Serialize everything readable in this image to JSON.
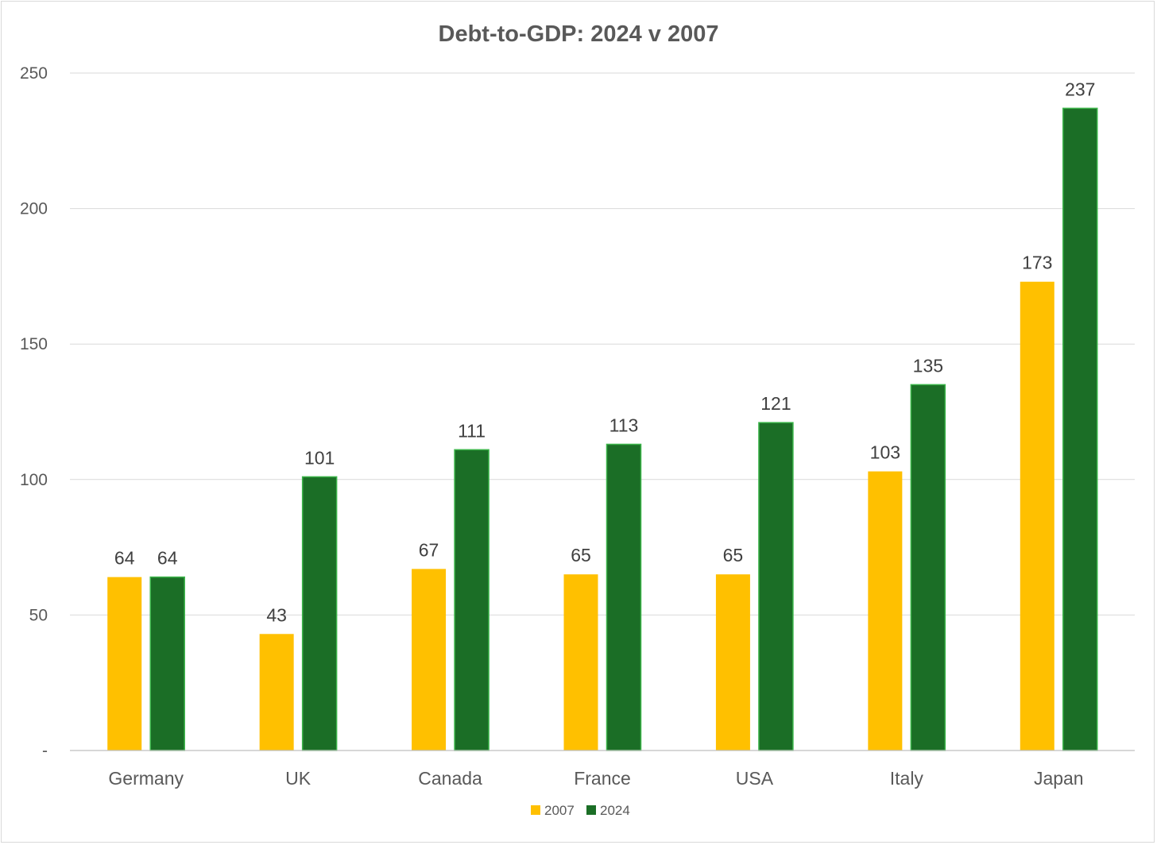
{
  "chart_data": {
    "type": "bar",
    "title": "Debt-to-GDP: 2024 v 2007",
    "xlabel": "",
    "ylabel": "",
    "ylim": [
      0,
      250
    ],
    "yticks": [
      0,
      50,
      100,
      150,
      200,
      250
    ],
    "ytick_labels": [
      "-",
      "50",
      "100",
      "150",
      "200",
      "250"
    ],
    "categories": [
      "Germany",
      "UK",
      "Canada",
      "France",
      "USA",
      "Italy",
      "Japan"
    ],
    "series": [
      {
        "name": "2007",
        "color": "#ffc000",
        "values": [
          64,
          43,
          67,
          65,
          65,
          103,
          173
        ]
      },
      {
        "name": "2024",
        "color": "#1b6e26",
        "edge": "#3cb54a",
        "values": [
          64,
          101,
          111,
          113,
          121,
          135,
          237
        ]
      }
    ],
    "data_labels": true,
    "grid": true,
    "legend": "bottom"
  }
}
